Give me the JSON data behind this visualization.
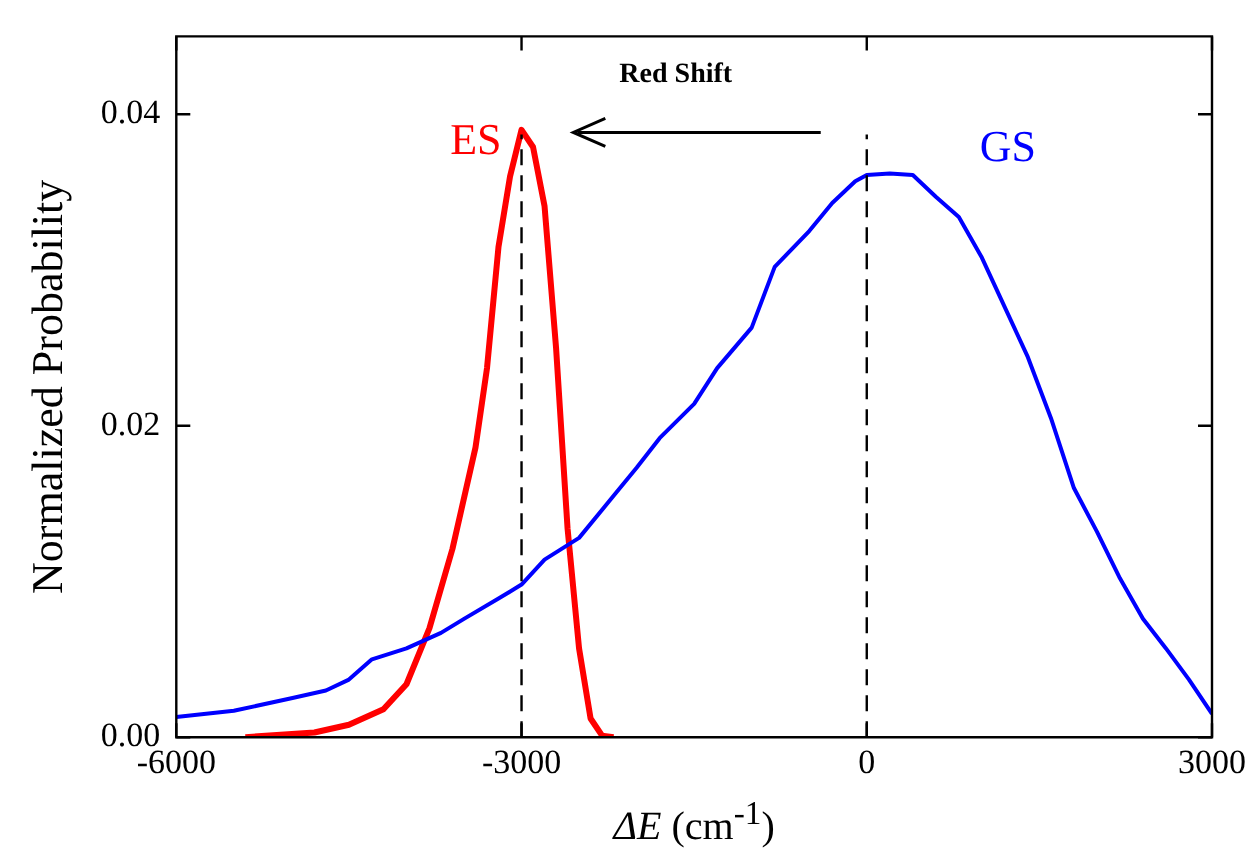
{
  "chart_data": {
    "type": "line",
    "xlabel": "ΔE (cm$^{-1}$)",
    "ylabel": "Normalized Probability",
    "xlim": [
      -6000,
      3000
    ],
    "xticks": [
      -6000,
      -3000,
      0,
      3000
    ],
    "ylim": [
      0,
      0.045
    ],
    "yticks": [
      {
        "value": 0,
        "label": "0.00"
      },
      {
        "value": 0.02,
        "label": "0.02"
      },
      {
        "value": 0.04,
        "label": "0.04"
      }
    ],
    "grid": false,
    "legend": false,
    "marker": "none",
    "line_style": "solid",
    "series": [
      {
        "name": "GS",
        "color": "#0000ff",
        "x": [
          -6000,
          -5500,
          -5000,
          -4700,
          -4500,
          -4300,
          -4000,
          -3700,
          -3500,
          -3200,
          -3000,
          -2800,
          -2500,
          -2200,
          -2000,
          -1800,
          -1500,
          -1300,
          -1000,
          -800,
          -500,
          -300,
          -100,
          0,
          200,
          400,
          600,
          800,
          1000,
          1200,
          1400,
          1600,
          1800,
          2000,
          2200,
          2400,
          2600,
          2800,
          3000
        ],
        "values": [
          0.0013,
          0.0017,
          0.0025,
          0.003,
          0.0037,
          0.005,
          0.0057,
          0.0067,
          0.0076,
          0.0089,
          0.0098,
          0.0114,
          0.0128,
          0.0155,
          0.0173,
          0.0192,
          0.0214,
          0.0237,
          0.0263,
          0.0302,
          0.0325,
          0.0343,
          0.0357,
          0.0361,
          0.0362,
          0.0361,
          0.0347,
          0.0334,
          0.0308,
          0.0276,
          0.0244,
          0.0205,
          0.016,
          0.0132,
          0.0102,
          0.0076,
          0.0057,
          0.0037,
          0.0015
        ]
      },
      {
        "name": "ES",
        "color": "#ff0000",
        "x": [
          -5400,
          -4800,
          -4500,
          -4200,
          -4000,
          -3800,
          -3600,
          -3400,
          -3300,
          -3200,
          -3100,
          -3000,
          -2900,
          -2800,
          -2700,
          -2600,
          -2500,
          -2400,
          -2300,
          -2200
        ],
        "values": [
          0,
          0.0003,
          0.0008,
          0.0018,
          0.0034,
          0.007,
          0.0121,
          0.0186,
          0.0237,
          0.0315,
          0.036,
          0.039,
          0.0379,
          0.0341,
          0.025,
          0.0134,
          0.0057,
          0.0012,
          0.0001,
          0
        ]
      }
    ],
    "ref_lines": [
      {
        "axis": "x",
        "value": -3000,
        "color": "#000000",
        "line_style": "dashed"
      },
      {
        "axis": "x",
        "value": 0,
        "color": "#000000",
        "line_style": "dashed"
      }
    ],
    "annotations": [
      "Red Shift"
    ]
  }
}
